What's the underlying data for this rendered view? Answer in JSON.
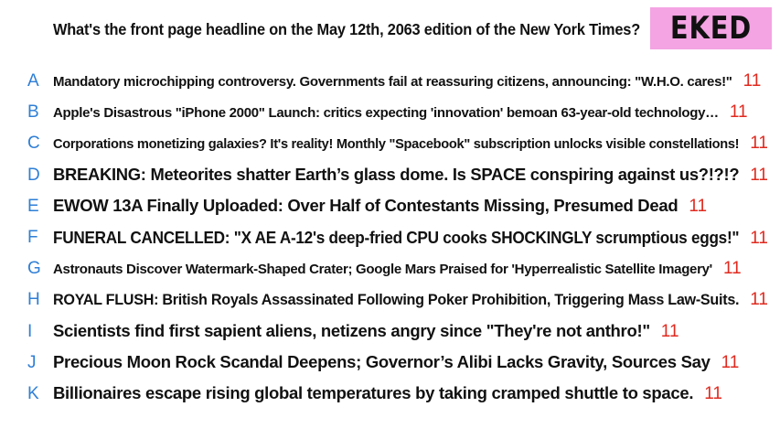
{
  "question": "What's the front page headline on the May 12th, 2063 edition of the New York Times?",
  "badge": "EKED",
  "options": [
    {
      "letter": "A",
      "text": "Mandatory microchipping controversy. Governments fail at reassuring citizens, announcing: \"W.H.O. cares!\"",
      "score": "11"
    },
    {
      "letter": "B",
      "text": "Apple's Disastrous \"iPhone 2000\" Launch: critics expecting 'innovation' bemoan 63-year-old technology…",
      "score": "11"
    },
    {
      "letter": "C",
      "text": "Corporations monetizing galaxies? It's reality! Monthly \"Spacebook\" subscription unlocks visible constellations!",
      "score": "11"
    },
    {
      "letter": "D",
      "text": "BREAKING: Meteorites shatter Earth’s glass dome. Is SPACE conspiring against us?!?!?",
      "score": "11"
    },
    {
      "letter": "E",
      "text": "EWOW 13A Finally Uploaded: Over Half of Contestants Missing, Presumed Dead",
      "score": "11"
    },
    {
      "letter": "F",
      "text": "FUNERAL CANCELLED: \"X AE A-12's deep-fried CPU cooks SHOCKINGLY scrumptious eggs!\"",
      "score": "11"
    },
    {
      "letter": "G",
      "text": "Astronauts Discover Watermark-Shaped Crater; Google Mars Praised for 'Hyperrealistic Satellite Imagery'",
      "score": "11"
    },
    {
      "letter": "H",
      "text": "ROYAL FLUSH: British Royals Assassinated Following Poker Prohibition, Triggering Mass Law-Suits.",
      "score": "11"
    },
    {
      "letter": "I",
      "text": "Scientists find first sapient aliens, netizens angry since \"They're not anthro!\"",
      "score": "11"
    },
    {
      "letter": "J",
      "text": "Precious Moon Rock Scandal Deepens; Governor’s Alibi Lacks Gravity, Sources Say",
      "score": "11"
    },
    {
      "letter": "K",
      "text": "Billionaires escape rising global temperatures by taking cramped shuttle to space.",
      "score": "11"
    }
  ]
}
